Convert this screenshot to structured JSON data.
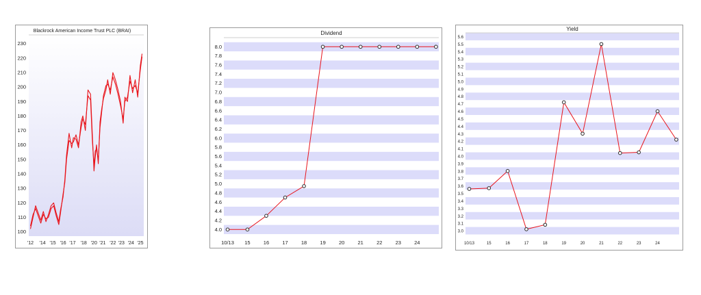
{
  "colors": {
    "line": "#e8141b",
    "band": "#dcdcfa",
    "grad_top": "#ffffff",
    "grad_bottom": "#dcdcf6",
    "marker_fill": "#ffffff",
    "marker_stroke": "#2a2a2a"
  },
  "chart_data": [
    {
      "type": "line",
      "title": "Blackrock American Income Trust PLC (BRAI)",
      "x_tick_labels": [
        "'12",
        "'14",
        "'15",
        "'16",
        "'17",
        "'18",
        "'20",
        "'21",
        "'22",
        "'23",
        "'24",
        "'25"
      ],
      "x_ticks": [
        2012.0,
        2013.4,
        2014.6,
        2015.8,
        2016.9,
        2018.2,
        2019.4,
        2020.4,
        2021.6,
        2022.6,
        2023.7,
        2024.8
      ],
      "xlim": [
        2011.8,
        2025.2
      ],
      "ylim": [
        97,
        236
      ],
      "y_ticks": [
        100,
        110,
        120,
        130,
        140,
        150,
        160,
        170,
        180,
        190,
        200,
        210,
        220,
        230
      ],
      "background": "gradient",
      "series": [
        {
          "x": [
            2012.0,
            2012.3,
            2012.6,
            2012.9,
            2013.2,
            2013.5,
            2013.8,
            2014.1,
            2014.4,
            2014.7,
            2015.0,
            2015.3,
            2015.5,
            2015.8,
            2016.0,
            2016.2,
            2016.5,
            2016.8,
            2017.0,
            2017.3,
            2017.6,
            2017.9,
            2018.1,
            2018.4,
            2018.7,
            2019.0,
            2019.2,
            2019.4,
            2019.55,
            2019.7,
            2019.9,
            2020.1,
            2020.3,
            2020.5,
            2020.8,
            2021.0,
            2021.3,
            2021.6,
            2021.9,
            2022.2,
            2022.5,
            2022.8,
            2023.0,
            2023.3,
            2023.6,
            2023.9,
            2024.2,
            2024.5,
            2024.8,
            2025.0
          ],
          "y": [
            102,
            110,
            118,
            113,
            108,
            114,
            107,
            112,
            118,
            120,
            113,
            107,
            115,
            124,
            136,
            153,
            168,
            158,
            165,
            164,
            158,
            176,
            180,
            170,
            198,
            195,
            168,
            142,
            152,
            160,
            147,
            176,
            185,
            192,
            198,
            205,
            195,
            210,
            205,
            198,
            190,
            175,
            193,
            190,
            208,
            196,
            205,
            193,
            215,
            223
          ]
        },
        {
          "x": [
            2012.0,
            2012.3,
            2012.6,
            2012.9,
            2013.2,
            2013.5,
            2013.8,
            2014.1,
            2014.4,
            2014.7,
            2015.0,
            2015.3,
            2015.5,
            2015.8,
            2016.0,
            2016.2,
            2016.5,
            2016.8,
            2017.0,
            2017.3,
            2017.6,
            2017.9,
            2018.1,
            2018.4,
            2018.7,
            2019.0,
            2019.2,
            2019.4,
            2019.55,
            2019.7,
            2019.9,
            2020.1,
            2020.3,
            2020.5,
            2020.8,
            2021.0,
            2021.3,
            2021.6,
            2021.9,
            2022.2,
            2022.5,
            2022.8,
            2023.0,
            2023.3,
            2023.6,
            2023.9,
            2024.2,
            2024.5,
            2024.8,
            2025.0
          ],
          "y": [
            104,
            112,
            116,
            111,
            106,
            112,
            109,
            110,
            116,
            118,
            111,
            105,
            113,
            126,
            134,
            150,
            163,
            161,
            162,
            167,
            160,
            172,
            178,
            174,
            194,
            191,
            164,
            146,
            156,
            157,
            150,
            172,
            183,
            194,
            201,
            202,
            198,
            207,
            202,
            195,
            187,
            178,
            190,
            193,
            204,
            199,
            201,
            196,
            212,
            221
          ]
        }
      ]
    },
    {
      "type": "line",
      "title": "Dividend",
      "x_tick_labels": [
        "10/13",
        "15",
        "16",
        "17",
        "18",
        "19",
        "20",
        "21",
        "22",
        "23",
        "24"
      ],
      "x": [
        2013.8,
        2014.85,
        2015.85,
        2016.85,
        2017.85,
        2018.85,
        2019.85,
        2020.85,
        2021.85,
        2022.85,
        2023.85,
        2024.85
      ],
      "xlim": [
        2013.6,
        2025.0
      ],
      "ylim": [
        3.9,
        8.2
      ],
      "y_ticks": [
        "4.0",
        "4.2",
        "4.4",
        "4.6",
        "4.8",
        "5.0",
        "5.2",
        "5.4",
        "5.6",
        "5.8",
        "6.0",
        "6.2",
        "6.4",
        "6.6",
        "6.8",
        "7.0",
        "7.2",
        "7.4",
        "7.6",
        "7.8",
        "8.0"
      ],
      "markers": true,
      "series": [
        {
          "values": [
            4.0,
            4.0,
            4.3,
            4.7,
            4.95,
            8.0,
            8.0,
            8.0,
            8.0,
            8.0,
            8.0,
            8.0
          ]
        }
      ]
    },
    {
      "type": "line",
      "title": "Yield",
      "x_tick_labels": [
        "10/13",
        "15",
        "16",
        "17",
        "18",
        "19",
        "20",
        "21",
        "22",
        "23",
        "24"
      ],
      "x": [
        2013.8,
        2014.85,
        2015.85,
        2016.85,
        2017.85,
        2018.85,
        2019.85,
        2020.85,
        2021.85,
        2022.85,
        2023.85,
        2024.85
      ],
      "xlim": [
        2013.6,
        2025.0
      ],
      "ylim": [
        2.9,
        5.65
      ],
      "y_ticks": [
        "3.0",
        "3.1",
        "3.2",
        "3.3",
        "3.4",
        "3.5",
        "3.6",
        "3.7",
        "3.8",
        "3.9",
        "4.0",
        "4.1",
        "4.2",
        "4.3",
        "4.4",
        "4.5",
        "4.6",
        "4.7",
        "4.8",
        "4.9",
        "5.0",
        "5.1",
        "5.2",
        "5.3",
        "5.4",
        "5.5",
        "5.6"
      ],
      "markers": true,
      "series": [
        {
          "values": [
            3.56,
            3.57,
            3.8,
            3.02,
            3.08,
            4.72,
            4.3,
            5.5,
            4.04,
            4.05,
            4.6,
            4.22
          ]
        }
      ]
    }
  ]
}
